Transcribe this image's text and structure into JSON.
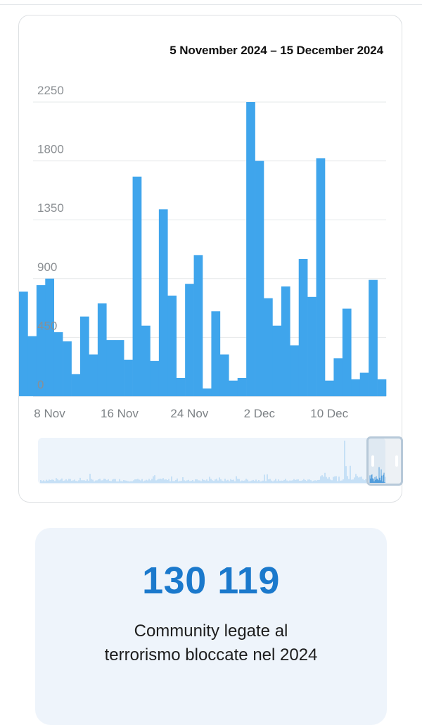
{
  "chart_data": {
    "type": "bar",
    "title": "5 November 2024 – 15 December 2024",
    "xlabel": "",
    "ylabel": "",
    "ylim": [
      0,
      2250
    ],
    "y_ticks": [
      "2250",
      "1800",
      "1350",
      "900",
      "450",
      "0"
    ],
    "x_ticks": [
      "8 Nov",
      "16 Nov",
      "24 Nov",
      "2 Dec",
      "10 Dec"
    ],
    "grid": true,
    "legend": "none",
    "bar_color": "#3fa5ec",
    "series": [
      {
        "values": [
          800,
          460,
          850,
          900,
          490,
          420,
          170,
          610,
          320,
          710,
          430,
          430,
          280,
          1680,
          540,
          270,
          1430,
          770,
          140,
          860,
          1080,
          60,
          650,
          320,
          120,
          140,
          2250,
          1800,
          750,
          540,
          840,
          390,
          1050,
          760,
          1820,
          120,
          290,
          670,
          130,
          180,
          890,
          130
        ]
      }
    ]
  },
  "stat": {
    "value": "130 119",
    "label": "Community legate al terrorismo bloccate nel 2024"
  },
  "colors": {
    "accent": "#1b79cc",
    "bar": "#3fa5ec",
    "navigator_track": "#edf4fb",
    "navigator_window": "#b7c9d9"
  }
}
